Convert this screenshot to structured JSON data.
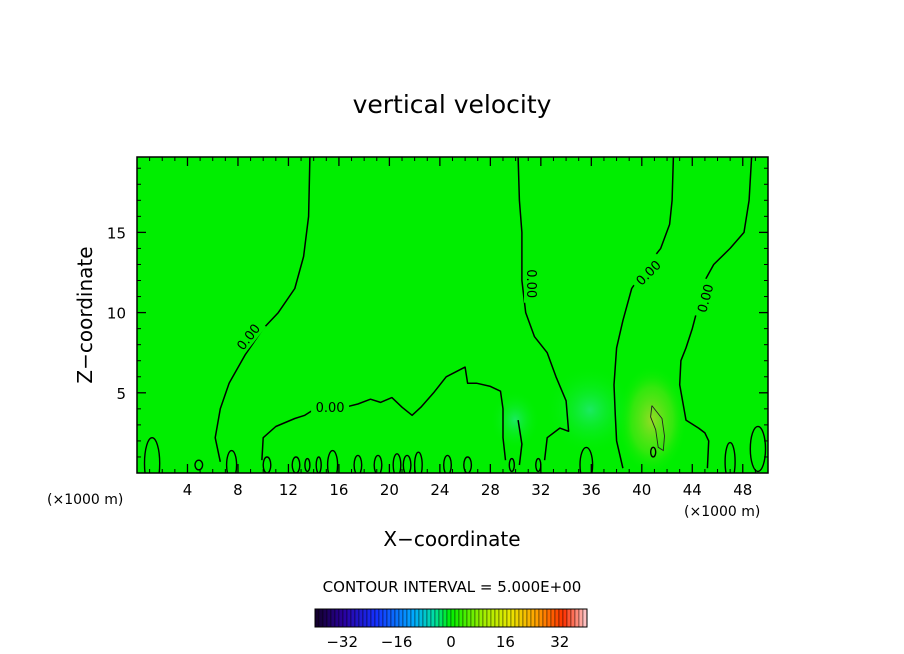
{
  "chart_data": {
    "type": "contour",
    "title": "vertical velocity",
    "xlabel": "X−coordinate",
    "ylabel": "Z−coordinate",
    "x_units_left": "(×1000 m)",
    "x_units_right": "(×1000 m)",
    "xlim": [
      0,
      50
    ],
    "ylim": [
      0,
      19.7
    ],
    "x_ticks": [
      4,
      8,
      12,
      16,
      20,
      24,
      28,
      32,
      36,
      40,
      44,
      48
    ],
    "y_ticks": [
      5,
      10,
      15
    ],
    "contour_interval_text": "CONTOUR INTERVAL = 5.000E+00",
    "contour_label": "0.00",
    "colorbar": {
      "ticks": [
        -32,
        -16,
        0,
        16,
        32
      ],
      "tick_labels": [
        "−32",
        "−16",
        "0",
        "16",
        "32"
      ],
      "range": [
        -40,
        40
      ]
    },
    "zero_contours": [
      [
        [
          13.7,
          19.7
        ],
        [
          13.6,
          16
        ],
        [
          13.2,
          13.5
        ],
        [
          12.5,
          11.5
        ],
        [
          11.2,
          10
        ],
        [
          10,
          9
        ],
        [
          8.6,
          7.4
        ],
        [
          7.3,
          5.6
        ],
        [
          6.6,
          4
        ],
        [
          6.2,
          2.2
        ],
        [
          6.6,
          0.7
        ]
      ],
      [
        [
          9.9,
          0.8
        ],
        [
          10,
          2.2
        ],
        [
          11,
          2.9
        ],
        [
          12.5,
          3.4
        ],
        [
          13.3,
          3.6
        ],
        [
          14.5,
          4.2
        ],
        [
          15.5,
          4.5
        ],
        [
          16.5,
          4.1
        ],
        [
          17.5,
          4.3
        ],
        [
          18.5,
          4.6
        ],
        [
          19.3,
          4.4
        ],
        [
          20.2,
          4.7
        ],
        [
          21,
          4.1
        ],
        [
          21.8,
          3.6
        ],
        [
          22.5,
          4.1
        ],
        [
          23.5,
          5
        ],
        [
          24.5,
          6
        ],
        [
          25.5,
          6.4
        ],
        [
          26,
          6.6
        ],
        [
          26.2,
          5.6
        ],
        [
          26.9,
          5.6
        ],
        [
          28,
          5.4
        ],
        [
          28.8,
          5.1
        ],
        [
          29,
          4
        ],
        [
          29,
          2.2
        ],
        [
          29.2,
          0.8
        ]
      ],
      [
        [
          30.2,
          19.7
        ],
        [
          30.3,
          17
        ],
        [
          30.5,
          15
        ],
        [
          30.5,
          12
        ],
        [
          30.8,
          10
        ],
        [
          31.5,
          8.5
        ],
        [
          32.5,
          7.5
        ],
        [
          33.2,
          6
        ],
        [
          34,
          4.5
        ],
        [
          34.2,
          2.6
        ],
        [
          33.5,
          2.8
        ],
        [
          32.5,
          2.2
        ],
        [
          32.3,
          0.8
        ]
      ],
      [
        [
          30.2,
          3.3
        ],
        [
          30.5,
          1.8
        ],
        [
          30.3,
          0.5
        ]
      ],
      [
        [
          42.5,
          19.7
        ],
        [
          42.4,
          17
        ],
        [
          42.2,
          15.5
        ],
        [
          41.5,
          14
        ],
        [
          40.5,
          13
        ],
        [
          39.2,
          11.5
        ],
        [
          38.5,
          9.5
        ],
        [
          38,
          7.8
        ],
        [
          37.8,
          5.5
        ],
        [
          37.9,
          3.6
        ],
        [
          38,
          2
        ],
        [
          38.5,
          0.3
        ]
      ],
      [
        [
          48.7,
          19.7
        ],
        [
          48.5,
          17
        ],
        [
          48.1,
          15
        ],
        [
          47,
          14
        ],
        [
          45.7,
          13
        ],
        [
          45,
          12
        ],
        [
          44.5,
          10.5
        ],
        [
          44,
          9
        ],
        [
          43.5,
          7.8
        ],
        [
          43.1,
          7
        ],
        [
          43,
          5.5
        ],
        [
          43.5,
          3.3
        ],
        [
          44.5,
          2.8
        ],
        [
          45,
          2.5
        ],
        [
          45.3,
          2
        ],
        [
          45.2,
          0.3
        ]
      ]
    ],
    "positive_contours": [
      [
        [
          40.8,
          4.2
        ],
        [
          41.6,
          3.4
        ],
        [
          41.8,
          2.3
        ],
        [
          41.7,
          1.4
        ],
        [
          41.3,
          1.6
        ],
        [
          41.1,
          2.7
        ],
        [
          40.7,
          3.5
        ],
        [
          40.8,
          4.2
        ]
      ]
    ]
  }
}
